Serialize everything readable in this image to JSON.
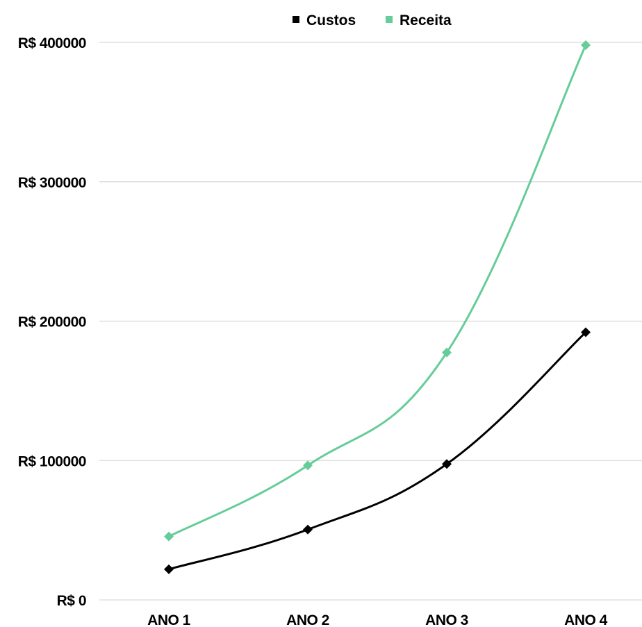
{
  "chart_data": {
    "type": "line",
    "categories": [
      "ANO 1",
      "ANO 2",
      "ANO 3",
      "ANO 4"
    ],
    "series": [
      {
        "name": "Custos",
        "values": [
          22000,
          50500,
          97500,
          192000
        ],
        "color": "#000000"
      },
      {
        "name": "Receita",
        "values": [
          45500,
          96500,
          177500,
          398000
        ],
        "color": "#66cc99"
      }
    ],
    "y_ticks": [
      0,
      100000,
      200000,
      300000,
      400000
    ],
    "y_tick_labels": [
      "R$ 0",
      "R$ 100000",
      "R$ 200000",
      "R$ 300000",
      "R$ 400000"
    ],
    "ylim": [
      0,
      400000
    ],
    "grid": true,
    "legend_position": "top",
    "marker": "diamond",
    "smooth": true
  }
}
